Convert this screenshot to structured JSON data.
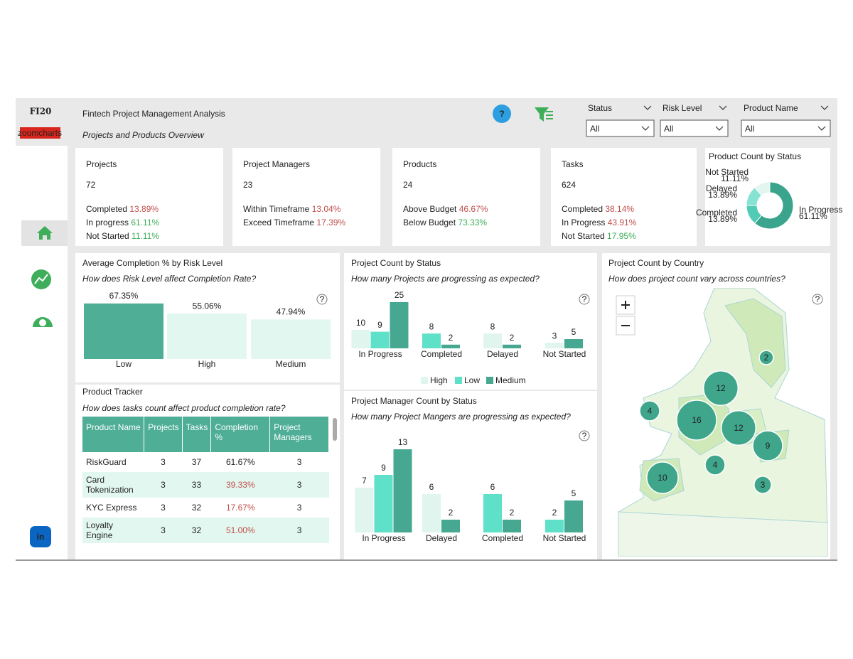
{
  "header": {
    "logo": "FI20",
    "brand": "zoomcharts",
    "title": "Fintech Project Management Analysis",
    "subtitle": "Projects and Products Overview",
    "help": "?"
  },
  "filters": [
    {
      "label": "Status",
      "value": "All"
    },
    {
      "label": "Risk Level",
      "value": "All"
    },
    {
      "label": "Product Name",
      "value": "All"
    }
  ],
  "kpis": [
    {
      "title": "Projects",
      "value": 72,
      "rows": [
        {
          "label": "Completed",
          "value": "13.89%",
          "color": "#c0504d"
        },
        {
          "label": "In progress",
          "value": "61.11%",
          "color": "#3fae5a"
        },
        {
          "label": "Not Started",
          "value": "11.11%",
          "color": "#3fae5a"
        }
      ]
    },
    {
      "title": "Project Managers",
      "value": 23,
      "rows": [
        {
          "label": "Within Timeframe",
          "value": "13.04%",
          "color": "#c0504d"
        },
        {
          "label": "Exceed Timeframe",
          "value": "17.39%",
          "color": "#c0504d"
        }
      ]
    },
    {
      "title": "Products",
      "value": 24,
      "rows": [
        {
          "label": "Above Budget",
          "value": "46.67%",
          "color": "#c0504d"
        },
        {
          "label": "Below Budget",
          "value": "73.33%",
          "color": "#3fae5a"
        }
      ]
    },
    {
      "title": "Tasks",
      "value": 624,
      "rows": [
        {
          "label": "Completed",
          "value": "38.14%",
          "color": "#c0504d"
        },
        {
          "label": "In Progress",
          "value": "43.91%",
          "color": "#c0504d"
        },
        {
          "label": "Not Started",
          "value": "17.95%",
          "color": "#3fae5a"
        }
      ]
    }
  ],
  "chart_data": [
    {
      "type": "pie",
      "donut": true,
      "title": "Product Count by Status",
      "categories": [
        "In Progress",
        "Completed",
        "Delayed",
        "Not Started"
      ],
      "values": [
        61.11,
        13.89,
        13.89,
        11.11
      ],
      "value_labels": [
        "61.11%",
        "13.89%",
        "13.89%",
        "11.11%"
      ],
      "colors": [
        "#3aa58c",
        "#52cbb5",
        "#86e2d2",
        "#e2f5ee"
      ]
    },
    {
      "type": "bar",
      "title": "Average Completion % by Risk Level",
      "subtitle": "How does Risk Level affect Completion Rate?",
      "categories": [
        "Low",
        "High",
        "Medium"
      ],
      "values": [
        67.35,
        55.06,
        47.94
      ],
      "value_labels": [
        "67.35%",
        "55.06%",
        "47.94%"
      ],
      "colors": [
        "#4fae96",
        "#e2f7ef",
        "#e2f7ef"
      ]
    },
    {
      "type": "bar",
      "title": "Project Count by Status",
      "subtitle": "How many Projects are progressing as expected?",
      "categories": [
        "In Progress",
        "Completed",
        "Delayed",
        "Not Started"
      ],
      "legend": "bottom",
      "series": [
        {
          "name": "High",
          "color": "#dff5ee",
          "values": [
            10,
            null,
            8,
            3
          ]
        },
        {
          "name": "Low",
          "color": "#5fe0c8",
          "values": [
            9,
            8,
            null,
            null
          ]
        },
        {
          "name": "Medium",
          "color": "#46a891",
          "values": [
            25,
            2,
            2,
            5
          ]
        }
      ]
    },
    {
      "type": "bar",
      "title": "Project Manager Count by Status",
      "subtitle": "How many Project Mangers are progressing as expected?",
      "categories": [
        "In Progress",
        "Delayed",
        "Completed",
        "Not Started"
      ],
      "series": [
        {
          "color": "#dff5ee",
          "values": [
            7,
            6,
            null,
            null
          ]
        },
        {
          "color": "#5fe0c8",
          "values": [
            9,
            null,
            6,
            2
          ]
        },
        {
          "color": "#46a891",
          "values": [
            13,
            2,
            2,
            5
          ]
        }
      ]
    },
    {
      "type": "map",
      "title": "Project Count by Country",
      "subtitle": "How does project count vary across countries?",
      "values": [
        2,
        12,
        4,
        16,
        12,
        9,
        4,
        10,
        3
      ],
      "color": "#3fa58b"
    }
  ],
  "table": {
    "title": "Product Tracker",
    "subtitle": "How does tasks count affect product completion rate?",
    "columns": [
      "Product Name",
      "Projects",
      "Tasks",
      "Completion %",
      "Project Managers"
    ],
    "rows": [
      {
        "cells": [
          "RiskGuard",
          3,
          37,
          "61.67%",
          3
        ],
        "color": "#222222"
      },
      {
        "cells": [
          "Card Tokenization",
          3,
          33,
          "39.33%",
          3
        ],
        "color": "#c0504d"
      },
      {
        "cells": [
          "KYC Express",
          3,
          32,
          "17.67%",
          3
        ],
        "color": "#c0504d"
      },
      {
        "cells": [
          "Loyalty Engine",
          3,
          32,
          "51.00%",
          3
        ],
        "color": "#c0504d"
      }
    ]
  },
  "sidebar": {
    "linkedin": "in"
  }
}
